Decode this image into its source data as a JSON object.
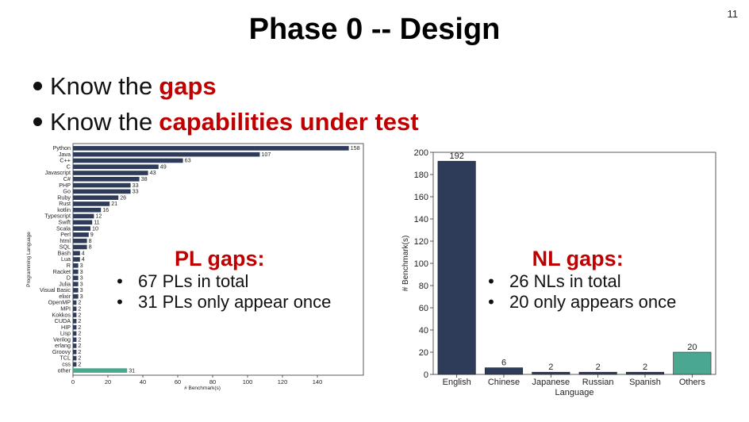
{
  "slide": {
    "number": "11",
    "title": "Phase 0 -- Design",
    "bullets": [
      {
        "prefix": "Know the",
        "highlight": "gaps"
      },
      {
        "prefix": "Know the",
        "highlight": "capabilities under test"
      }
    ]
  },
  "pl_callout": {
    "heading": "PL gaps:",
    "items": [
      "67 PLs in total",
      "31 PLs only appear once"
    ]
  },
  "nl_callout": {
    "heading": "NL gaps:",
    "items": [
      "26 NLs in total",
      "20 only appears once"
    ]
  },
  "colors": {
    "bar_main": "#2e3c59",
    "bar_other": "#4aa891",
    "highlight": "#c00000"
  },
  "chart_data": [
    {
      "type": "bar",
      "orientation": "horizontal",
      "ylabel": "Programming Language",
      "xlabel": "# Benchmark(s)",
      "xlim": [
        0,
        160
      ],
      "xticks": [
        0,
        20,
        40,
        60,
        80,
        100,
        120,
        140
      ],
      "categories": [
        "Python",
        "Java",
        "C++",
        "C",
        "Javascript",
        "C#",
        "PHP",
        "Go",
        "Ruby",
        "Rust",
        "kotlin",
        "Typescript",
        "Swift",
        "Scala",
        "Perl",
        "html",
        "SQL",
        "Bash",
        "Lua",
        "R",
        "Racket",
        "D",
        "Julia",
        "Visual Basic",
        "elixir",
        "OpenMP",
        "MPI",
        "Kokkos",
        "CUDA",
        "HIP",
        "Lisp",
        "Verilog",
        "erlang",
        "Groovy",
        "TCL",
        "css",
        "other"
      ],
      "values": [
        158,
        107,
        63,
        49,
        43,
        38,
        33,
        33,
        26,
        21,
        16,
        12,
        11,
        10,
        9,
        8,
        8,
        4,
        4,
        3,
        3,
        3,
        3,
        3,
        3,
        2,
        2,
        2,
        2,
        2,
        2,
        2,
        2,
        2,
        2,
        2,
        31
      ],
      "highlight_category": "other"
    },
    {
      "type": "bar",
      "xlabel": "Language",
      "ylabel": "# Benchmark(s)",
      "ylim": [
        0,
        200
      ],
      "yticks": [
        0,
        20,
        40,
        60,
        80,
        100,
        120,
        140,
        160,
        180,
        200
      ],
      "categories": [
        "English",
        "Chinese",
        "Japanese",
        "Russian",
        "Spanish",
        "Others"
      ],
      "values": [
        192,
        6,
        2,
        2,
        2,
        20
      ],
      "highlight_category": "Others"
    }
  ]
}
